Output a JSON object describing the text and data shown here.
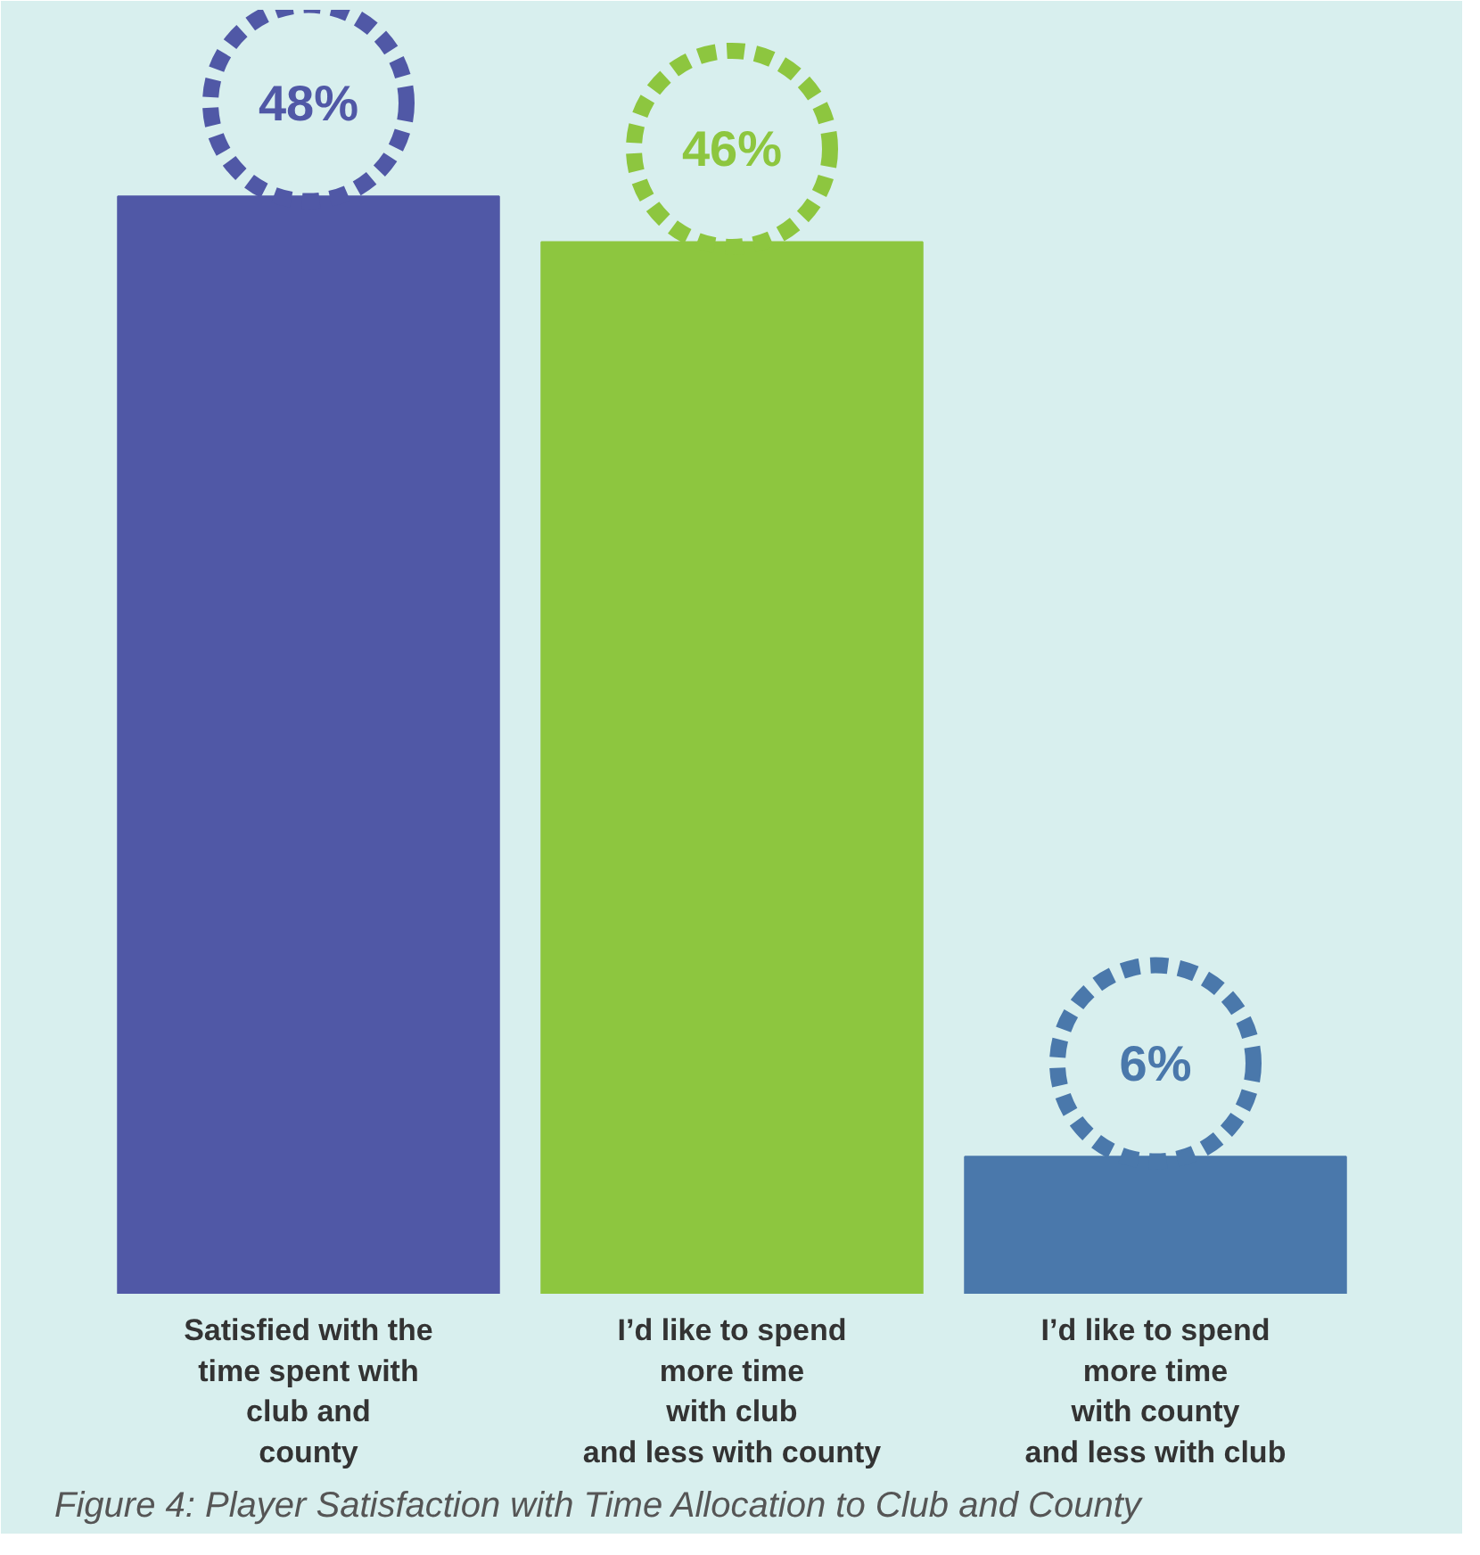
{
  "chart_data": {
    "type": "bar",
    "categories": [
      "Satisfied with the\ntime spent with\nclub and\ncounty",
      "I’d like to spend\nmore time\nwith club\nand less with county",
      "I’d like to spend\nmore time\nwith county\nand less with club"
    ],
    "values": [
      48,
      46,
      6
    ],
    "colors": [
      "#5058a6",
      "#8dc63f",
      "#4a78ab"
    ],
    "value_labels": [
      "48%",
      "46%",
      "6%"
    ],
    "annotations": [
      "Figure 4: Player Satisfaction with Time Allocation to Club and County"
    ]
  }
}
